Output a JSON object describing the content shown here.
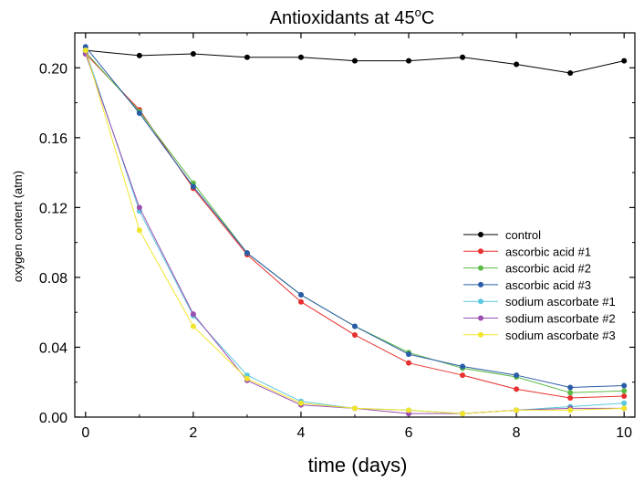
{
  "chart_data": {
    "type": "line",
    "title_main": "Antioxidants at 45",
    "title_sup": "o",
    "title_tail": "C",
    "xlabel": "time (days)",
    "ylabel": "oxygen content (atm)",
    "xlim": [
      -0.2,
      10.2
    ],
    "ylim": [
      0,
      0.22
    ],
    "xticks": [
      0,
      2,
      4,
      6,
      8,
      10
    ],
    "xtick_labels": [
      "0",
      "2",
      "4",
      "6",
      "8",
      "10"
    ],
    "yticks": [
      0.0,
      0.04,
      0.08,
      0.12,
      0.16,
      0.2
    ],
    "ytick_labels": [
      "0.00",
      "0.04",
      "0.08",
      "0.12",
      "0.16",
      "0.20"
    ],
    "grid": false,
    "legend_position": "center-right",
    "series": [
      {
        "name": "control",
        "color": "#000000",
        "x": [
          0,
          1,
          2,
          3,
          4,
          5,
          6,
          7,
          8,
          9,
          10
        ],
        "y": [
          0.21,
          0.207,
          0.208,
          0.206,
          0.206,
          0.204,
          0.204,
          0.206,
          0.202,
          0.197,
          0.204
        ]
      },
      {
        "name": "ascorbic acid #1",
        "color": "#e8312f",
        "x": [
          0,
          1,
          2,
          3,
          4,
          5,
          6,
          7,
          8,
          9,
          10
        ],
        "y": [
          0.208,
          0.176,
          0.131,
          0.093,
          0.066,
          0.047,
          0.031,
          0.024,
          0.016,
          0.011,
          0.012
        ]
      },
      {
        "name": "ascorbic acid #2",
        "color": "#5cbb46",
        "x": [
          0,
          1,
          2,
          3,
          4,
          5,
          6,
          7,
          8,
          9,
          10
        ],
        "y": [
          0.209,
          0.175,
          0.134,
          0.094,
          0.07,
          0.052,
          0.037,
          0.028,
          0.023,
          0.014,
          0.015
        ]
      },
      {
        "name": "ascorbic acid #3",
        "color": "#2a5ca8",
        "x": [
          0,
          1,
          2,
          3,
          4,
          5,
          6,
          7,
          8,
          9,
          10
        ],
        "y": [
          0.212,
          0.174,
          0.132,
          0.094,
          0.07,
          0.052,
          0.036,
          0.029,
          0.024,
          0.017,
          0.018
        ]
      },
      {
        "name": "sodium ascorbate #1",
        "color": "#5bc8e0",
        "x": [
          0,
          1,
          2,
          3,
          4,
          5,
          6,
          7,
          8,
          9,
          10
        ],
        "y": [
          0.21,
          0.118,
          0.058,
          0.024,
          0.009,
          0.005,
          0.004,
          0.002,
          0.004,
          0.006,
          0.008
        ]
      },
      {
        "name": "sodium ascorbate #2",
        "color": "#9b4fb0",
        "x": [
          0,
          1,
          2,
          3,
          4,
          5,
          6,
          7,
          8,
          9,
          10
        ],
        "y": [
          0.208,
          0.12,
          0.059,
          0.021,
          0.007,
          0.005,
          0.002,
          0.002,
          0.004,
          0.005,
          0.005
        ]
      },
      {
        "name": "sodium ascorbate #3",
        "color": "#f0e52a",
        "x": [
          0,
          1,
          2,
          3,
          4,
          5,
          6,
          7,
          8,
          9,
          10
        ],
        "y": [
          0.21,
          0.107,
          0.052,
          0.022,
          0.008,
          0.005,
          0.004,
          0.002,
          0.004,
          0.004,
          0.005
        ]
      }
    ]
  }
}
